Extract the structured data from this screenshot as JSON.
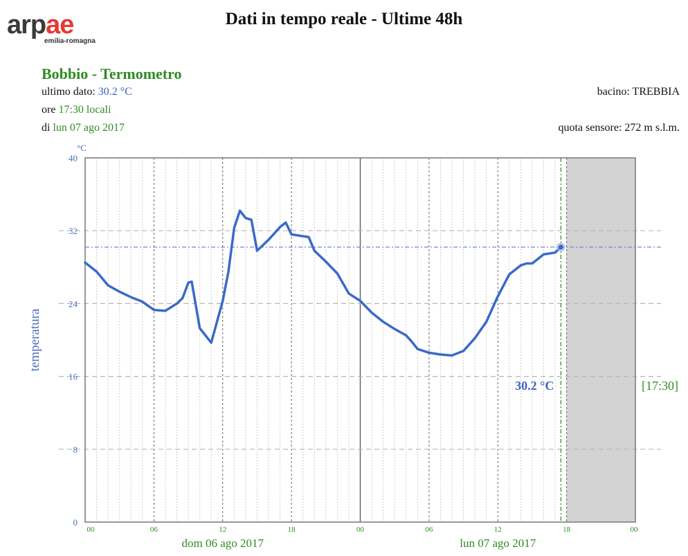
{
  "logo": {
    "word_dark": "arp",
    "word_red": "ae",
    "sub": "emilia-romagna"
  },
  "header": {
    "title": "Dati in tempo reale - Ultime 48h"
  },
  "station": {
    "name": "Bobbio - Termometro",
    "last_label": "ultimo dato:",
    "last_value": "30.2 °C",
    "time_prefix": "ore",
    "time_value": "17:30 locali",
    "date_prefix": "di",
    "date_value": "lun 07 ago 2017",
    "basin": "bacino: TREBBIA",
    "altitude": "quota sensore: 272 m s.l.m."
  },
  "colors": {
    "series": "#3a6ac8",
    "accent_green": "#2e8b23",
    "future_band": "#d3d3d3"
  },
  "chart_data": {
    "type": "line",
    "ylabel": "temperatura",
    "yunit": "°C",
    "ylim": [
      0,
      40
    ],
    "yticks": [
      "0",
      "8",
      "16",
      "24",
      "32",
      "40"
    ],
    "xlim": [
      0,
      48
    ],
    "xticks": [
      {
        "x": 0,
        "label": "00"
      },
      {
        "x": 6,
        "label": "06"
      },
      {
        "x": 12,
        "label": "12"
      },
      {
        "x": 18,
        "label": "18"
      },
      {
        "x": 24,
        "label": "00"
      },
      {
        "x": 30,
        "label": "06"
      },
      {
        "x": 36,
        "label": "12"
      },
      {
        "x": 42,
        "label": "18"
      },
      {
        "x": 48,
        "label": "00"
      }
    ],
    "day_labels": [
      {
        "x": 12,
        "label": "dom 06 ago 2017"
      },
      {
        "x": 36,
        "label": "lun 07 ago 2017"
      }
    ],
    "current": {
      "x": 41.5,
      "y": 30.2,
      "value_label": "30.2 °C",
      "time_label": "[17:30]"
    },
    "series": [
      {
        "x": [
          0,
          1,
          2,
          3,
          4,
          5,
          6,
          7,
          8,
          8.5,
          9,
          9.3,
          10,
          11,
          12,
          12.5,
          13,
          13.5,
          14,
          14.5,
          15,
          16,
          17,
          17.5,
          18,
          19,
          19.5,
          20,
          21,
          22,
          23,
          24,
          25,
          26,
          27,
          28,
          28.5,
          29,
          30,
          31,
          32,
          33,
          34,
          35,
          36,
          37,
          38,
          38.5,
          39,
          40,
          41,
          41.5
        ],
        "y": [
          28.5,
          27.5,
          26,
          25.3,
          24.7,
          24.2,
          23.3,
          23.2,
          24,
          24.6,
          26.3,
          26.4,
          21.3,
          19.7,
          24.3,
          27.5,
          32.3,
          34.2,
          33.4,
          33.2,
          29.8,
          31,
          32.4,
          32.9,
          31.6,
          31.4,
          31.3,
          29.8,
          28.6,
          27.3,
          25.1,
          24.3,
          23,
          22,
          21.2,
          20.5,
          19.8,
          19,
          18.6,
          18.4,
          18.3,
          18.8,
          20.2,
          22,
          24.8,
          27.2,
          28.2,
          28.4,
          28.4,
          29.4,
          29.6,
          30.2
        ]
      }
    ]
  }
}
